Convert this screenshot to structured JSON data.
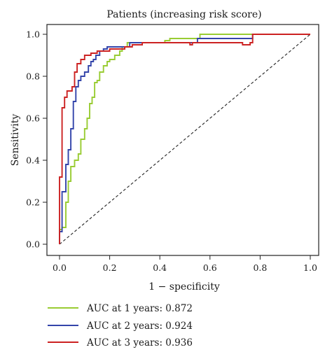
{
  "chart_data": {
    "type": "line",
    "title": "Patients (increasing risk score)",
    "xlabel": "1 − specificity",
    "ylabel": "Sensitivity",
    "xlim": [
      0.0,
      1.0
    ],
    "ylim": [
      0.0,
      1.0
    ],
    "xticks": [
      "0.0",
      "0.2",
      "0.4",
      "0.6",
      "0.8",
      "1.0"
    ],
    "yticks": [
      "0.0",
      "0.2",
      "0.4",
      "0.6",
      "0.8",
      "1.0"
    ],
    "grid": false,
    "legend_position": "bottom-left",
    "reference_line": "diagonal dashed",
    "series": [
      {
        "name": "AUC at 1 years: 0.872",
        "color": "#99cc33",
        "x": [
          0.0,
          0.0,
          0.01,
          0.01,
          0.025,
          0.025,
          0.035,
          0.035,
          0.045,
          0.045,
          0.06,
          0.06,
          0.075,
          0.075,
          0.085,
          0.085,
          0.1,
          0.1,
          0.11,
          0.11,
          0.12,
          0.12,
          0.13,
          0.13,
          0.14,
          0.14,
          0.15,
          0.15,
          0.16,
          0.16,
          0.175,
          0.175,
          0.19,
          0.19,
          0.2,
          0.2,
          0.22,
          0.22,
          0.24,
          0.24,
          0.25,
          0.25,
          0.27,
          0.27,
          0.42,
          0.42,
          0.44,
          0.44,
          0.56,
          0.56,
          0.77,
          0.77,
          1.0
        ],
        "y": [
          0.0,
          0.07,
          0.07,
          0.08,
          0.08,
          0.2,
          0.2,
          0.3,
          0.3,
          0.37,
          0.37,
          0.4,
          0.4,
          0.43,
          0.43,
          0.5,
          0.5,
          0.55,
          0.55,
          0.6,
          0.6,
          0.67,
          0.67,
          0.7,
          0.7,
          0.77,
          0.77,
          0.78,
          0.78,
          0.82,
          0.82,
          0.85,
          0.85,
          0.87,
          0.87,
          0.88,
          0.88,
          0.9,
          0.9,
          0.92,
          0.92,
          0.94,
          0.94,
          0.96,
          0.96,
          0.97,
          0.97,
          0.98,
          0.98,
          1.0,
          1.0,
          1.0,
          1.0
        ]
      },
      {
        "name": "AUC at 2 years: 0.924",
        "color": "#3344aa",
        "x": [
          0.0,
          0.0,
          0.01,
          0.01,
          0.025,
          0.025,
          0.035,
          0.035,
          0.045,
          0.045,
          0.055,
          0.055,
          0.065,
          0.065,
          0.075,
          0.075,
          0.085,
          0.085,
          0.1,
          0.1,
          0.115,
          0.115,
          0.125,
          0.125,
          0.135,
          0.135,
          0.145,
          0.145,
          0.16,
          0.16,
          0.175,
          0.175,
          0.19,
          0.19,
          0.28,
          0.28,
          0.55,
          0.55,
          0.77,
          0.77,
          1.0
        ],
        "y": [
          0.0,
          0.06,
          0.06,
          0.25,
          0.25,
          0.38,
          0.38,
          0.45,
          0.45,
          0.55,
          0.55,
          0.68,
          0.68,
          0.75,
          0.75,
          0.78,
          0.78,
          0.8,
          0.8,
          0.82,
          0.82,
          0.85,
          0.85,
          0.87,
          0.87,
          0.88,
          0.88,
          0.9,
          0.9,
          0.92,
          0.92,
          0.93,
          0.93,
          0.94,
          0.94,
          0.96,
          0.96,
          0.98,
          0.98,
          1.0,
          1.0
        ]
      },
      {
        "name": "AUC at 3 years: 0.936",
        "color": "#cc2222",
        "x": [
          0.0,
          0.0,
          0.01,
          0.01,
          0.02,
          0.02,
          0.03,
          0.03,
          0.05,
          0.05,
          0.06,
          0.06,
          0.07,
          0.07,
          0.085,
          0.085,
          0.1,
          0.1,
          0.125,
          0.125,
          0.15,
          0.15,
          0.2,
          0.2,
          0.26,
          0.26,
          0.29,
          0.29,
          0.33,
          0.33,
          0.52,
          0.52,
          0.53,
          0.53,
          0.6,
          0.6,
          0.73,
          0.73,
          0.76,
          0.76,
          0.77,
          0.77,
          1.0
        ],
        "y": [
          0.0,
          0.32,
          0.32,
          0.65,
          0.65,
          0.7,
          0.7,
          0.73,
          0.73,
          0.75,
          0.75,
          0.82,
          0.82,
          0.86,
          0.86,
          0.88,
          0.88,
          0.9,
          0.9,
          0.91,
          0.91,
          0.92,
          0.92,
          0.93,
          0.93,
          0.94,
          0.94,
          0.95,
          0.95,
          0.96,
          0.96,
          0.95,
          0.95,
          0.96,
          0.96,
          0.96,
          0.96,
          0.95,
          0.95,
          0.96,
          0.96,
          1.0,
          1.0
        ]
      }
    ]
  }
}
